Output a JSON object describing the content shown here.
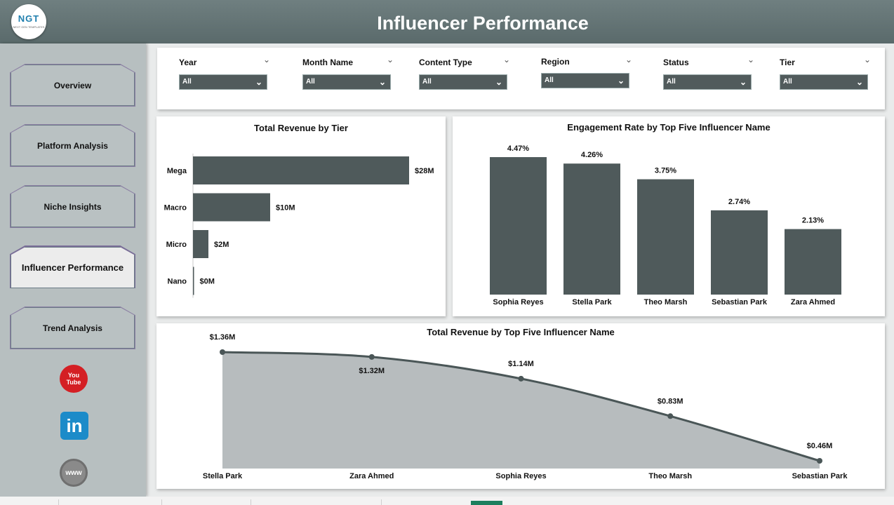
{
  "header": {
    "title": "Influencer Performance",
    "logo_text": "NGT",
    "logo_sub": "NEXT GEN TEMPLATES"
  },
  "sidebar": {
    "items": [
      {
        "label": "Overview",
        "active": false
      },
      {
        "label": "Platform Analysis",
        "active": false
      },
      {
        "label": "Niche Insights",
        "active": false
      },
      {
        "label": "Influencer Performance",
        "active": true
      },
      {
        "label": "Trend Analysis",
        "active": false
      }
    ],
    "social": [
      {
        "name": "youtube-icon",
        "text_top": "You",
        "text_bottom": "Tube"
      },
      {
        "name": "linkedin-icon",
        "text": "in"
      },
      {
        "name": "website-icon",
        "text": "www"
      }
    ]
  },
  "filters": [
    {
      "label": "Year",
      "value": "All"
    },
    {
      "label": "Month Name",
      "value": "All"
    },
    {
      "label": "Content Type",
      "value": "All"
    },
    {
      "label": "Region",
      "value": "All"
    },
    {
      "label": "Status",
      "value": "All"
    },
    {
      "label": "Tier",
      "value": "All"
    }
  ],
  "colors": {
    "bar": "#4f5a5b",
    "area": "#b7bcbe",
    "line": "#4a5657"
  },
  "chart_data": [
    {
      "type": "bar",
      "orientation": "horizontal",
      "title": "Total Revenue by Tier",
      "categories": [
        "Mega",
        "Macro",
        "Micro",
        "Nano"
      ],
      "values": [
        28,
        10,
        2,
        0.05
      ],
      "data_labels": [
        "$28M",
        "$10M",
        "$2M",
        "$0M"
      ],
      "unit": "$M"
    },
    {
      "type": "bar",
      "title": "Engagement Rate by Top Five Influencer Name",
      "categories": [
        "Sophia Reyes",
        "Stella Park",
        "Theo Marsh",
        "Sebastian Park",
        "Zara Ahmed"
      ],
      "values": [
        4.47,
        4.26,
        3.75,
        2.74,
        2.13
      ],
      "data_labels": [
        "4.47%",
        "4.26%",
        "3.75%",
        "2.74%",
        "2.13%"
      ],
      "unit": "%"
    },
    {
      "type": "area",
      "title": "Total Revenue by Top Five Influencer Name",
      "categories": [
        "Stella Park",
        "Zara Ahmed",
        "Sophia Reyes",
        "Theo Marsh",
        "Sebastian Park"
      ],
      "values": [
        1.36,
        1.32,
        1.14,
        0.83,
        0.46
      ],
      "data_labels": [
        "$1.36M",
        "$1.32M",
        "$1.14M",
        "$0.83M",
        "$0.46M"
      ],
      "unit": "$M"
    }
  ]
}
